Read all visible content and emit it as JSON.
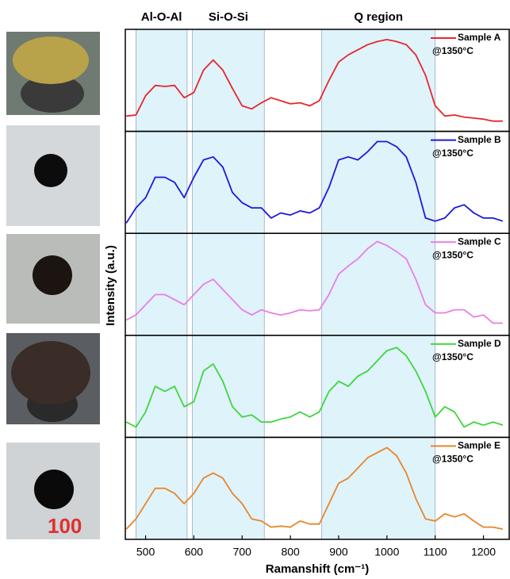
{
  "chart_data": {
    "type": "line",
    "x_label": "Ramanshift (cm⁻¹)",
    "y_label": "Intensity (a.u.)",
    "xlim": [
      458,
      1255
    ],
    "xticks": [
      500,
      600,
      700,
      800,
      900,
      1000,
      1100,
      1200
    ],
    "ylim": [
      0,
      1
    ],
    "regions": [
      {
        "label": "Al-O-Al",
        "start": 480,
        "end": 586
      },
      {
        "label": "Si-O-Si",
        "start": 597,
        "end": 746
      },
      {
        "label": "Q region",
        "start": 865,
        "end": 1100
      }
    ],
    "x": [
      460,
      480,
      500,
      520,
      540,
      560,
      580,
      600,
      620,
      640,
      660,
      680,
      700,
      720,
      740,
      760,
      780,
      800,
      820,
      840,
      860,
      880,
      900,
      920,
      940,
      960,
      980,
      1000,
      1020,
      1040,
      1060,
      1080,
      1100,
      1120,
      1140,
      1160,
      1180,
      1200,
      1220,
      1240
    ],
    "series": [
      {
        "name": "Sample A",
        "condition": "@1350°C",
        "color": "#e8262a",
        "values": [
          0.15,
          0.16,
          0.35,
          0.45,
          0.44,
          0.45,
          0.33,
          0.38,
          0.6,
          0.7,
          0.6,
          0.42,
          0.25,
          0.22,
          0.28,
          0.33,
          0.3,
          0.27,
          0.28,
          0.25,
          0.3,
          0.5,
          0.68,
          0.75,
          0.8,
          0.85,
          0.88,
          0.9,
          0.88,
          0.85,
          0.75,
          0.55,
          0.25,
          0.15,
          0.16,
          0.14,
          0.13,
          0.12,
          0.1,
          0.1
        ]
      },
      {
        "name": "Sample B",
        "condition": "@1350°C",
        "color": "#1a1adc",
        "values": [
          0.1,
          0.25,
          0.35,
          0.55,
          0.55,
          0.5,
          0.35,
          0.55,
          0.72,
          0.75,
          0.65,
          0.4,
          0.3,
          0.25,
          0.25,
          0.15,
          0.2,
          0.18,
          0.22,
          0.2,
          0.25,
          0.45,
          0.72,
          0.75,
          0.72,
          0.8,
          0.9,
          0.9,
          0.85,
          0.75,
          0.5,
          0.15,
          0.12,
          0.15,
          0.25,
          0.28,
          0.2,
          0.15,
          0.15,
          0.12
        ]
      },
      {
        "name": "Sample C",
        "condition": "@1350°C",
        "color": "#e87ee8",
        "values": [
          0.15,
          0.2,
          0.3,
          0.4,
          0.4,
          0.35,
          0.3,
          0.4,
          0.5,
          0.55,
          0.45,
          0.35,
          0.25,
          0.2,
          0.25,
          0.22,
          0.2,
          0.22,
          0.25,
          0.24,
          0.25,
          0.4,
          0.6,
          0.68,
          0.75,
          0.85,
          0.92,
          0.88,
          0.82,
          0.75,
          0.55,
          0.3,
          0.22,
          0.22,
          0.25,
          0.25,
          0.18,
          0.2,
          0.12,
          0.12
        ]
      },
      {
        "name": "Sample D",
        "condition": "@1350°C",
        "color": "#3ed63e",
        "values": [
          0.15,
          0.1,
          0.25,
          0.5,
          0.45,
          0.5,
          0.3,
          0.35,
          0.65,
          0.72,
          0.55,
          0.3,
          0.2,
          0.22,
          0.15,
          0.15,
          0.18,
          0.2,
          0.25,
          0.2,
          0.25,
          0.45,
          0.55,
          0.5,
          0.6,
          0.65,
          0.75,
          0.85,
          0.88,
          0.8,
          0.65,
          0.45,
          0.2,
          0.3,
          0.25,
          0.1,
          0.15,
          0.12,
          0.15,
          0.12
        ]
      },
      {
        "name": "Sample E",
        "condition": "@1350°C",
        "color": "#e8862a",
        "values": [
          0.1,
          0.2,
          0.35,
          0.5,
          0.5,
          0.45,
          0.35,
          0.45,
          0.6,
          0.65,
          0.6,
          0.45,
          0.35,
          0.2,
          0.18,
          0.12,
          0.13,
          0.12,
          0.18,
          0.15,
          0.15,
          0.35,
          0.55,
          0.6,
          0.7,
          0.8,
          0.85,
          0.9,
          0.82,
          0.65,
          0.4,
          0.2,
          0.18,
          0.25,
          0.22,
          0.25,
          0.18,
          0.12,
          0.12,
          0.1
        ]
      }
    ]
  }
}
